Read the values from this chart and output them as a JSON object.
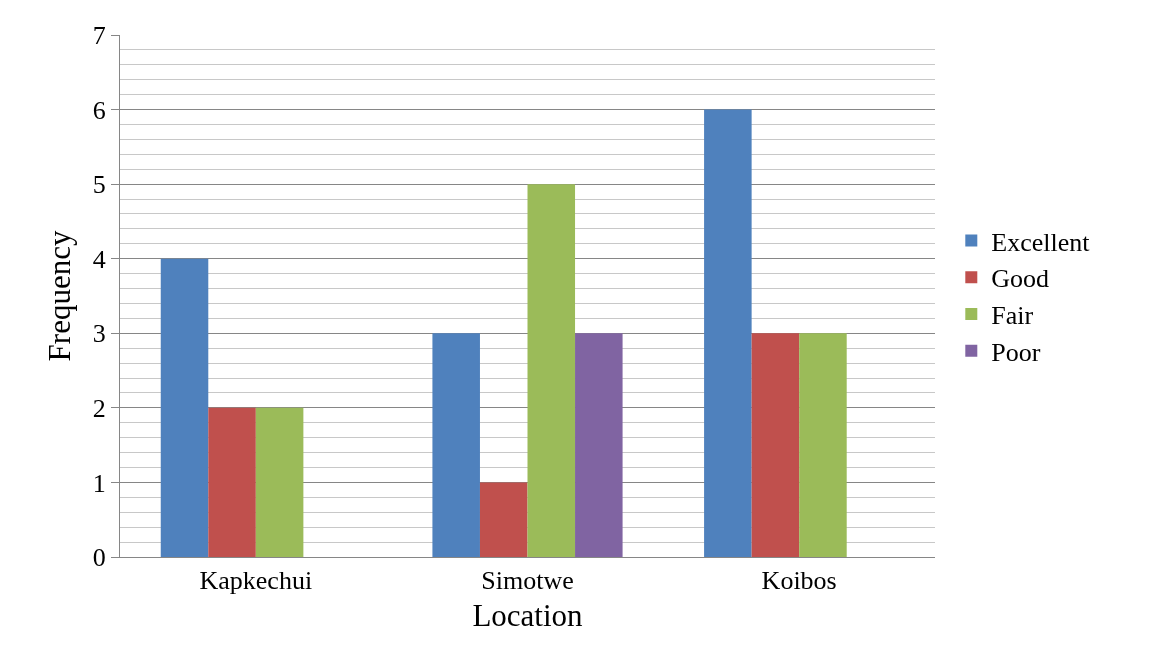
{
  "chart_data": {
    "type": "bar",
    "xlabel": "Location",
    "ylabel": "Frequency",
    "categories": [
      "Kapkechui",
      "Simotwe",
      "Koibos"
    ],
    "series": [
      {
        "name": "Excellent",
        "color": "#4f81bd",
        "values": [
          4,
          3,
          6
        ]
      },
      {
        "name": "Good",
        "color": "#c0504d",
        "values": [
          2,
          1,
          3
        ]
      },
      {
        "name": "Fair",
        "color": "#9bbb59",
        "values": [
          2,
          5,
          3
        ]
      },
      {
        "name": "Poor",
        "color": "#8064a2",
        "values": [
          null,
          3,
          null
        ]
      }
    ],
    "ylim": [
      0,
      7
    ],
    "yticks": [
      0,
      1,
      2,
      3,
      4,
      5,
      6,
      7
    ],
    "grid": "y",
    "legend": "right"
  }
}
